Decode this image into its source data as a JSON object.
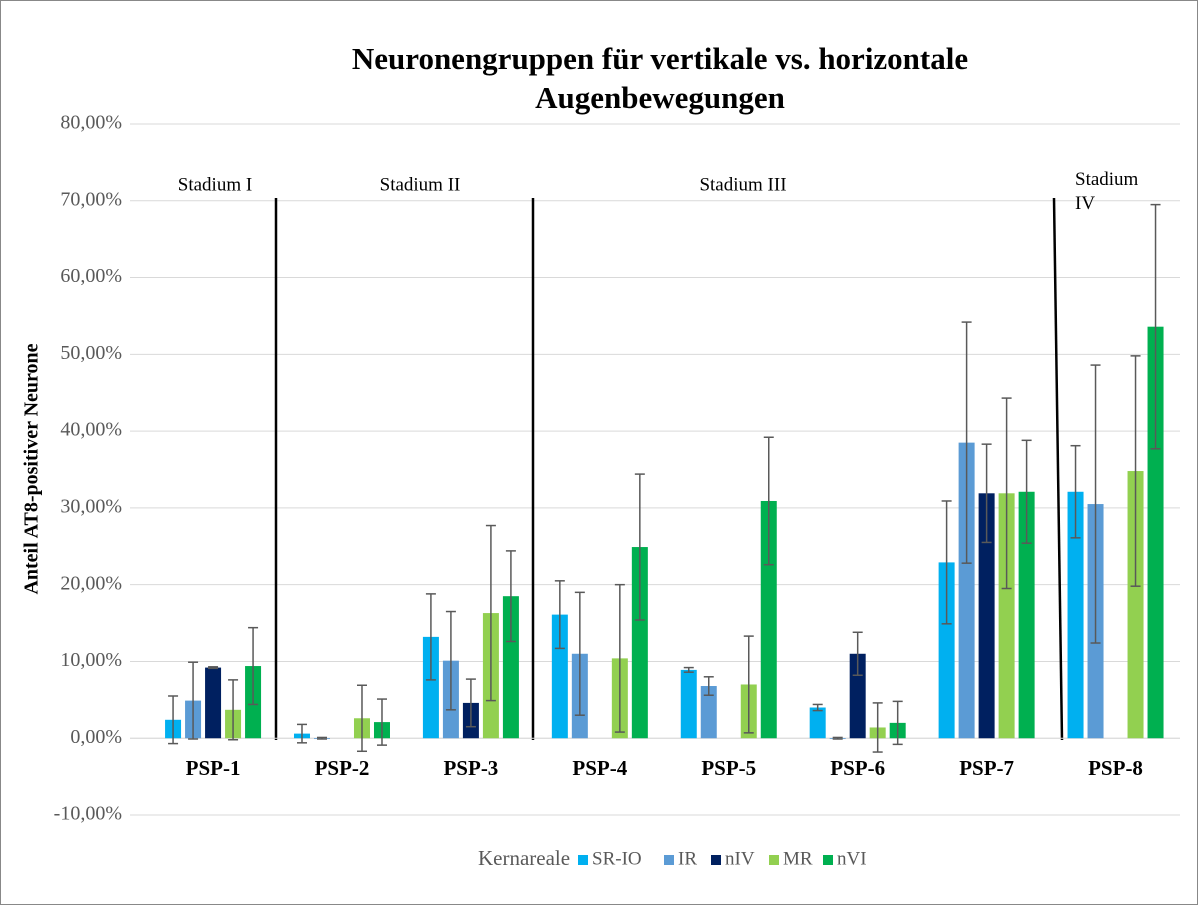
{
  "chart_data": {
    "type": "bar",
    "title": "Neuronengruppen für vertikale vs. horizontale Augenbewegungen",
    "y_label": "Anteil AT8-positiver Neurone",
    "legend_title": "Kernareale",
    "categories": [
      "PSP-1",
      "PSP-2",
      "PSP-3",
      "PSP-4",
      "PSP-5",
      "PSP-6",
      "PSP-7",
      "PSP-8"
    ],
    "annotations": [
      "Stadium I",
      "Stadium II",
      "Stadium III",
      "Stadium IV"
    ],
    "series": [
      {
        "name": "SR-IO",
        "color": "#00b0f0",
        "values": [
          2.4,
          0.6,
          13.2,
          16.1,
          8.9,
          4.0,
          22.9,
          32.1
        ],
        "errors": [
          3.1,
          1.2,
          5.6,
          4.4,
          0.3,
          0.4,
          8.0,
          6.0
        ]
      },
      {
        "name": "IR",
        "color": "#5b9bd5",
        "values": [
          4.9,
          0.0,
          10.1,
          11.0,
          6.8,
          0.0,
          38.5,
          30.5
        ],
        "errors": [
          5.0,
          0.1,
          6.4,
          8.0,
          1.2,
          0.1,
          15.7,
          18.1
        ]
      },
      {
        "name": "nIV",
        "color": "#002060",
        "values": [
          9.2,
          null,
          4.6,
          null,
          null,
          11.0,
          31.9,
          null
        ],
        "errors": [
          0.1,
          null,
          3.1,
          null,
          null,
          2.8,
          6.4,
          null
        ]
      },
      {
        "name": "MR",
        "color": "#92d050",
        "values": [
          3.7,
          2.6,
          16.3,
          10.4,
          7.0,
          1.4,
          31.9,
          34.8
        ],
        "errors": [
          3.9,
          4.3,
          11.4,
          9.6,
          6.3,
          3.2,
          12.4,
          15.0
        ]
      },
      {
        "name": "nVI",
        "color": "#00b050",
        "values": [
          9.4,
          2.1,
          18.5,
          24.9,
          30.9,
          2.0,
          32.1,
          53.6
        ],
        "errors": [
          5.0,
          3.0,
          5.9,
          9.5,
          8.3,
          2.8,
          6.7,
          15.9
        ]
      }
    ],
    "ylim": [
      -10,
      80
    ],
    "yticks": [
      {
        "value": -10,
        "label": "-10,00%"
      },
      {
        "value": 0,
        "label": "0,00%"
      },
      {
        "value": 10,
        "label": "10,00%"
      },
      {
        "value": 20,
        "label": "20,00%"
      },
      {
        "value": 30,
        "label": "30,00%"
      },
      {
        "value": 40,
        "label": "40,00%"
      },
      {
        "value": 50,
        "label": "50,00%"
      },
      {
        "value": 60,
        "label": "60,00%"
      },
      {
        "value": 70,
        "label": "70,00%"
      },
      {
        "value": 80,
        "label": "80,00%"
      }
    ],
    "grid": true,
    "legend": "bottom"
  }
}
